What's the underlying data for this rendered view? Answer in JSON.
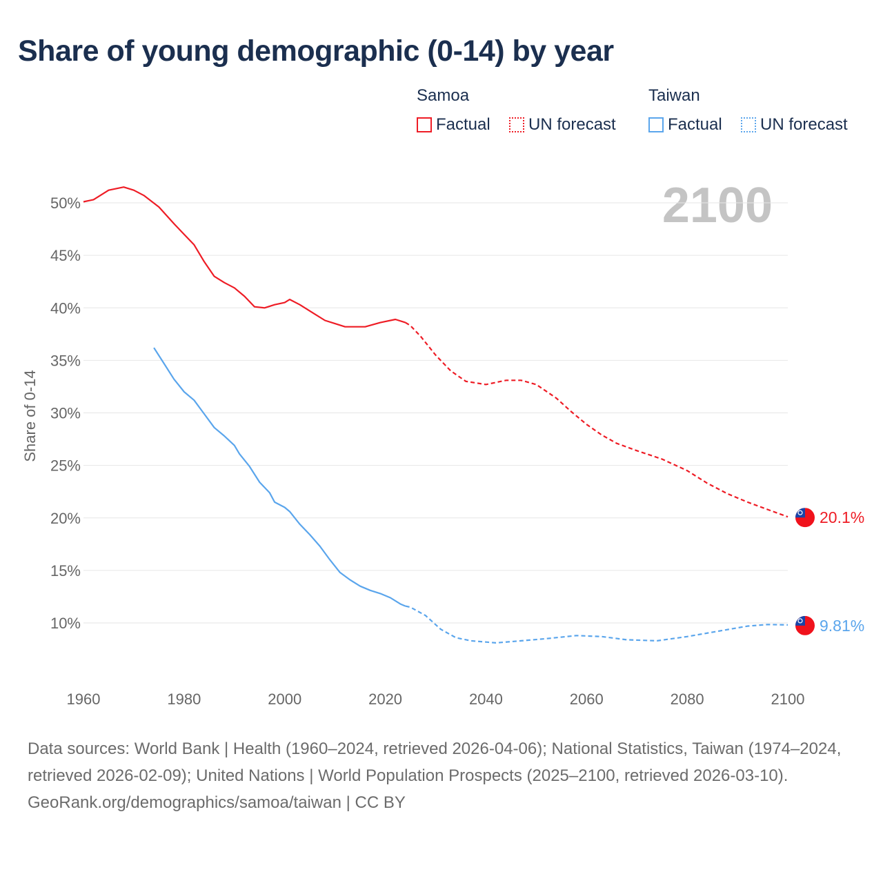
{
  "title": "Share of young demographic (0-14) by year",
  "legend": {
    "groups": [
      {
        "name": "Samoa",
        "factual": "Factual",
        "forecast": "UN forecast",
        "color": "#ee1c25"
      },
      {
        "name": "Taiwan",
        "factual": "Factual",
        "forecast": "UN forecast",
        "color": "#5aa5ec"
      }
    ]
  },
  "year_label": "2100",
  "chart_data": {
    "type": "line",
    "title": "Share of young demographic (0-14) by year",
    "xlabel": "",
    "ylabel": "Share of 0-14",
    "xlim": [
      1960,
      2100
    ],
    "ylim": [
      5.5,
      52
    ],
    "x_ticks": [
      1960,
      1980,
      2000,
      2020,
      2040,
      2060,
      2080,
      2100
    ],
    "x_tick_labels": [
      "1960",
      "1980",
      "2000",
      "2020",
      "2040",
      "2060",
      "2080",
      "2100"
    ],
    "y_ticks": [
      10,
      15,
      20,
      25,
      30,
      35,
      40,
      45,
      50
    ],
    "y_tick_labels": [
      "10%",
      "15%",
      "20%",
      "25%",
      "30%",
      "35%",
      "40%",
      "45%",
      "50%"
    ],
    "grid": true,
    "series": [
      {
        "name": "Samoa",
        "color": "#ee1c25",
        "end_label": "20.1%",
        "factual": [
          [
            1960,
            50.1
          ],
          [
            1962,
            50.3
          ],
          [
            1965,
            51.2
          ],
          [
            1968,
            51.5
          ],
          [
            1970,
            51.2
          ],
          [
            1972,
            50.7
          ],
          [
            1975,
            49.6
          ],
          [
            1978,
            48.0
          ],
          [
            1980,
            47.0
          ],
          [
            1982,
            46.0
          ],
          [
            1984,
            44.4
          ],
          [
            1986,
            43.0
          ],
          [
            1988,
            42.4
          ],
          [
            1990,
            41.9
          ],
          [
            1992,
            41.1
          ],
          [
            1994,
            40.1
          ],
          [
            1996,
            40.0
          ],
          [
            1998,
            40.3
          ],
          [
            2000,
            40.5
          ],
          [
            2001,
            40.8
          ],
          [
            2003,
            40.3
          ],
          [
            2006,
            39.4
          ],
          [
            2008,
            38.8
          ],
          [
            2010,
            38.5
          ],
          [
            2012,
            38.2
          ],
          [
            2016,
            38.2
          ],
          [
            2019,
            38.6
          ],
          [
            2022,
            38.9
          ],
          [
            2024,
            38.6
          ]
        ],
        "forecast": [
          [
            2024,
            38.6
          ],
          [
            2025,
            38.3
          ],
          [
            2027,
            37.3
          ],
          [
            2030,
            35.5
          ],
          [
            2033,
            34.0
          ],
          [
            2036,
            33.0
          ],
          [
            2040,
            32.7
          ],
          [
            2044,
            33.1
          ],
          [
            2047,
            33.1
          ],
          [
            2050,
            32.7
          ],
          [
            2054,
            31.4
          ],
          [
            2057,
            30.1
          ],
          [
            2060,
            28.9
          ],
          [
            2063,
            27.9
          ],
          [
            2066,
            27.1
          ],
          [
            2070,
            26.4
          ],
          [
            2075,
            25.6
          ],
          [
            2080,
            24.5
          ],
          [
            2084,
            23.3
          ],
          [
            2088,
            22.3
          ],
          [
            2092,
            21.5
          ],
          [
            2096,
            20.8
          ],
          [
            2100,
            20.1
          ]
        ]
      },
      {
        "name": "Taiwan",
        "color": "#5aa5ec",
        "end_label": "9.81%",
        "factual": [
          [
            1974,
            36.2
          ],
          [
            1976,
            34.7
          ],
          [
            1978,
            33.2
          ],
          [
            1980,
            32.0
          ],
          [
            1982,
            31.2
          ],
          [
            1984,
            29.9
          ],
          [
            1986,
            28.6
          ],
          [
            1988,
            27.8
          ],
          [
            1990,
            26.9
          ],
          [
            1991,
            26.1
          ],
          [
            1993,
            24.9
          ],
          [
            1995,
            23.4
          ],
          [
            1997,
            22.4
          ],
          [
            1998,
            21.5
          ],
          [
            2000,
            21.0
          ],
          [
            2001,
            20.6
          ],
          [
            2003,
            19.4
          ],
          [
            2005,
            18.4
          ],
          [
            2007,
            17.3
          ],
          [
            2009,
            16.0
          ],
          [
            2011,
            14.8
          ],
          [
            2013,
            14.1
          ],
          [
            2015,
            13.5
          ],
          [
            2017,
            13.1
          ],
          [
            2019,
            12.8
          ],
          [
            2021,
            12.4
          ],
          [
            2023,
            11.8
          ],
          [
            2024,
            11.6
          ]
        ],
        "forecast": [
          [
            2024,
            11.6
          ],
          [
            2025,
            11.5
          ],
          [
            2028,
            10.7
          ],
          [
            2031,
            9.4
          ],
          [
            2034,
            8.6
          ],
          [
            2037,
            8.3
          ],
          [
            2042,
            8.1
          ],
          [
            2047,
            8.3
          ],
          [
            2052,
            8.5
          ],
          [
            2058,
            8.8
          ],
          [
            2063,
            8.7
          ],
          [
            2068,
            8.4
          ],
          [
            2074,
            8.3
          ],
          [
            2080,
            8.7
          ],
          [
            2086,
            9.2
          ],
          [
            2092,
            9.7
          ],
          [
            2096,
            9.85
          ],
          [
            2100,
            9.81
          ]
        ]
      }
    ]
  },
  "footer": {
    "sources": "Data sources: World Bank | Health (1960–2024, retrieved 2026-04-06); National Statistics, Taiwan (1974–2024, retrieved 2026-02-09); United Nations | World Population Prospects (2025–2100, retrieved 2026-03-10).",
    "credit": "GeoRank.org/demographics/samoa/taiwan | CC BY"
  }
}
